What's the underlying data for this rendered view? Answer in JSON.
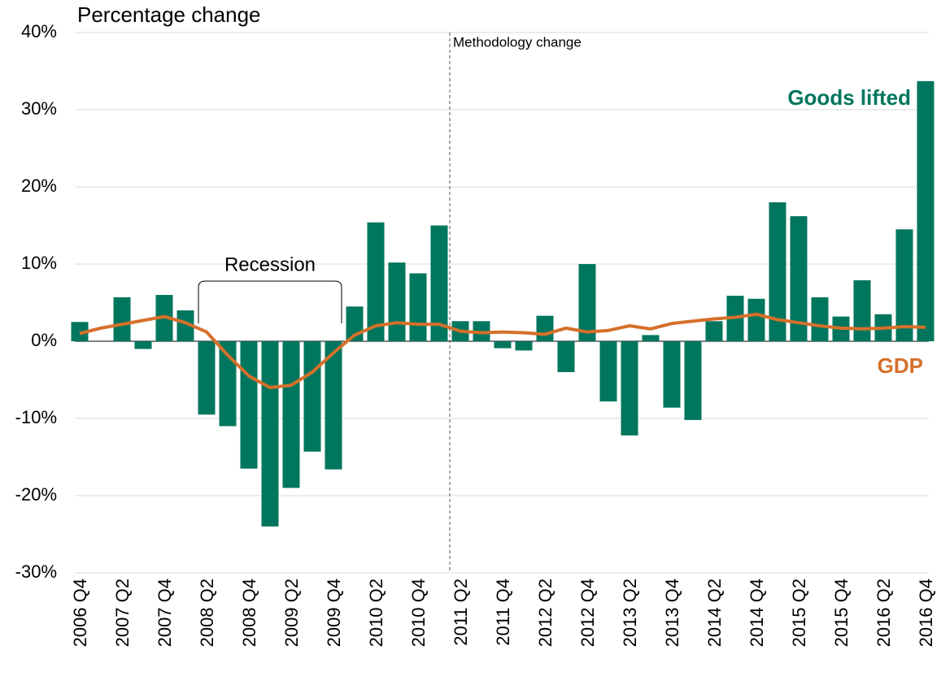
{
  "chart_data": {
    "type": "bar-line",
    "ylabel": "Percentage change",
    "annotations": {
      "methodology": "Methodology change",
      "recession": "Recession"
    },
    "categories": [
      "2006 Q4",
      null,
      "2007 Q2",
      null,
      "2007 Q4",
      null,
      "2008 Q2",
      null,
      "2008 Q4",
      null,
      "2009 Q2",
      null,
      "2009 Q4",
      null,
      "2010 Q2",
      null,
      "2010 Q4",
      null,
      "2011 Q2",
      null,
      "2011 Q4",
      null,
      "2012 Q2",
      null,
      "2012 Q4",
      null,
      "2013 Q2",
      null,
      "2013 Q4",
      null,
      "2014 Q2",
      null,
      "2014 Q4",
      null,
      "2015 Q2",
      null,
      "2015 Q4",
      null,
      "2016 Q2",
      null,
      "2016 Q4"
    ],
    "series": [
      {
        "name": "Goods lifted",
        "type": "bar",
        "color": "#00765e",
        "values": [
          2.5,
          0,
          5.7,
          -1,
          6,
          4,
          -9.5,
          -11,
          -16.5,
          -24,
          -19,
          -14.3,
          -16.6,
          4.5,
          15.4,
          10.2,
          8.8,
          15,
          2.6,
          2.6,
          -0.9,
          -1.2,
          3.3,
          -4,
          10,
          -7.8,
          -12.2,
          0.8,
          -8.6,
          -10.2,
          2.6,
          5.9,
          5.5,
          18,
          16.2,
          5.7,
          3.2,
          7.9,
          3.5,
          14.5,
          33.7
        ]
      },
      {
        "name": "GDP",
        "type": "line",
        "color": "#d5702a",
        "values": [
          1.0,
          1.7,
          2.2,
          2.7,
          3.2,
          2.4,
          1.2,
          -1.8,
          -4.5,
          -6.0,
          -5.7,
          -4.0,
          -1.5,
          0.8,
          2.0,
          2.4,
          2.2,
          2.2,
          1.3,
          1.1,
          1.2,
          1.1,
          0.9,
          1.7,
          1.2,
          1.4,
          2.0,
          1.6,
          2.3,
          2.6,
          2.9,
          3.1,
          3.5,
          2.8,
          2.4,
          2.0,
          1.7,
          1.6,
          1.7,
          1.9,
          1.8
        ]
      }
    ],
    "ylim": [
      -30,
      40
    ],
    "yticks": [
      {
        "value": -30,
        "label": "-30%"
      },
      {
        "value": -20,
        "label": "-20%"
      },
      {
        "value": -10,
        "label": "-10%"
      },
      {
        "value": 0,
        "label": "0%"
      },
      {
        "value": 10,
        "label": "10%"
      },
      {
        "value": 20,
        "label": "20%"
      },
      {
        "value": 30,
        "label": "30%"
      },
      {
        "value": 40,
        "label": "40%"
      }
    ],
    "grid": true
  }
}
